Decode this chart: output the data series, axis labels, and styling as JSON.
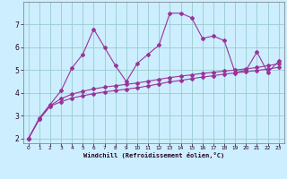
{
  "title": "",
  "xlabel": "Windchill (Refroidissement éolien,°C)",
  "x_values": [
    0,
    1,
    2,
    3,
    4,
    5,
    6,
    7,
    8,
    9,
    10,
    11,
    12,
    13,
    14,
    15,
    16,
    17,
    18,
    19,
    20,
    21,
    22,
    23
  ],
  "line1_y": [
    2.0,
    2.9,
    3.5,
    4.1,
    5.1,
    5.7,
    6.8,
    6.0,
    5.2,
    4.5,
    5.3,
    5.7,
    6.1,
    7.5,
    7.5,
    7.3,
    6.4,
    6.5,
    6.3,
    4.9,
    5.0,
    5.8,
    4.9,
    5.4
  ],
  "line2_y": [
    2.0,
    2.85,
    3.45,
    3.75,
    3.95,
    4.08,
    4.18,
    4.26,
    4.32,
    4.38,
    4.44,
    4.52,
    4.6,
    4.68,
    4.74,
    4.8,
    4.86,
    4.91,
    4.96,
    5.01,
    5.06,
    5.12,
    5.2,
    5.28
  ],
  "line3_y": [
    2.0,
    2.85,
    3.42,
    3.62,
    3.78,
    3.88,
    3.97,
    4.05,
    4.11,
    4.17,
    4.23,
    4.31,
    4.4,
    4.49,
    4.55,
    4.63,
    4.7,
    4.76,
    4.83,
    4.88,
    4.93,
    4.99,
    5.05,
    5.13
  ],
  "line_color": "#993399",
  "bg_color": "#cceeff",
  "grid_color": "#99cccc",
  "ylim": [
    1.8,
    8.0
  ],
  "xlim": [
    -0.5,
    23.5
  ],
  "yticks": [
    2,
    3,
    4,
    5,
    6,
    7
  ],
  "xticks": [
    0,
    1,
    2,
    3,
    4,
    5,
    6,
    7,
    8,
    9,
    10,
    11,
    12,
    13,
    14,
    15,
    16,
    17,
    18,
    19,
    20,
    21,
    22,
    23
  ],
  "xlabel_fontsize": 5.0,
  "ytick_fontsize": 5.5,
  "xtick_fontsize": 4.2,
  "linewidth": 0.8,
  "markersize": 2.0
}
